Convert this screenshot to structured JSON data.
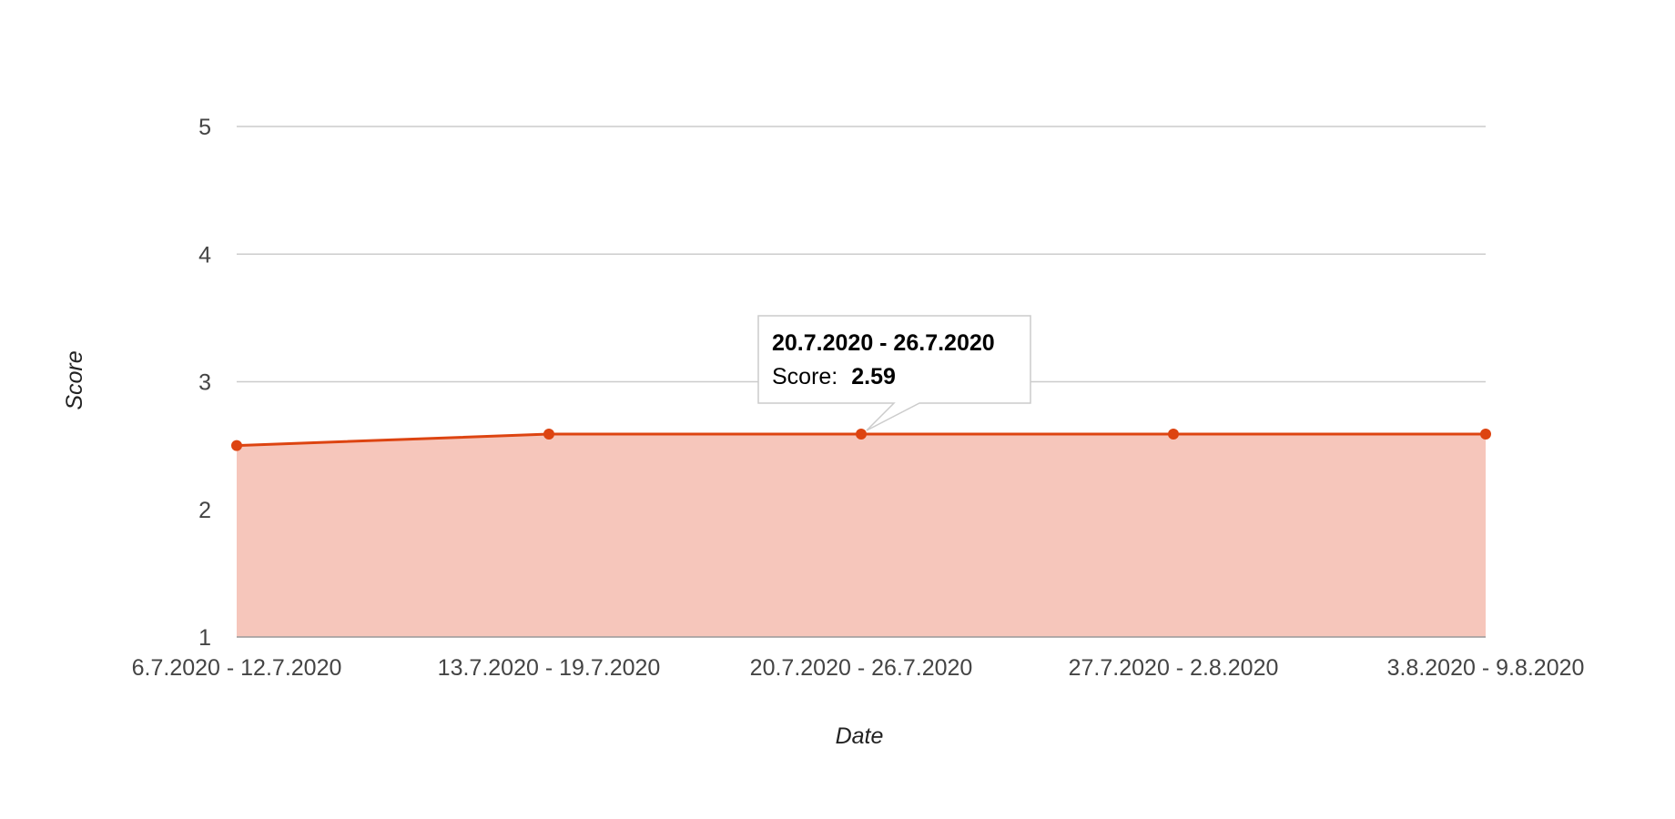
{
  "chart_data": {
    "type": "area",
    "categories": [
      "6.7.2020 - 12.7.2020",
      "13.7.2020 - 19.7.2020",
      "20.7.2020 - 26.7.2020",
      "27.7.2020 - 2.8.2020",
      "3.8.2020 - 9.8.2020"
    ],
    "series": [
      {
        "name": "Score",
        "values": [
          2.5,
          2.59,
          2.59,
          2.59,
          2.59
        ],
        "color": "#dd4411",
        "fill_color": "#f6c6bb"
      }
    ],
    "xlabel": "Date",
    "ylabel": "Score",
    "ylim": [
      1,
      5
    ],
    "yticks": [
      "1",
      "2",
      "3",
      "4",
      "5"
    ],
    "grid": true,
    "legend": "none",
    "tooltip": {
      "category_index": 2,
      "title": "20.7.2020 - 26.7.2020",
      "label": "Score:",
      "value": "2.59"
    }
  }
}
